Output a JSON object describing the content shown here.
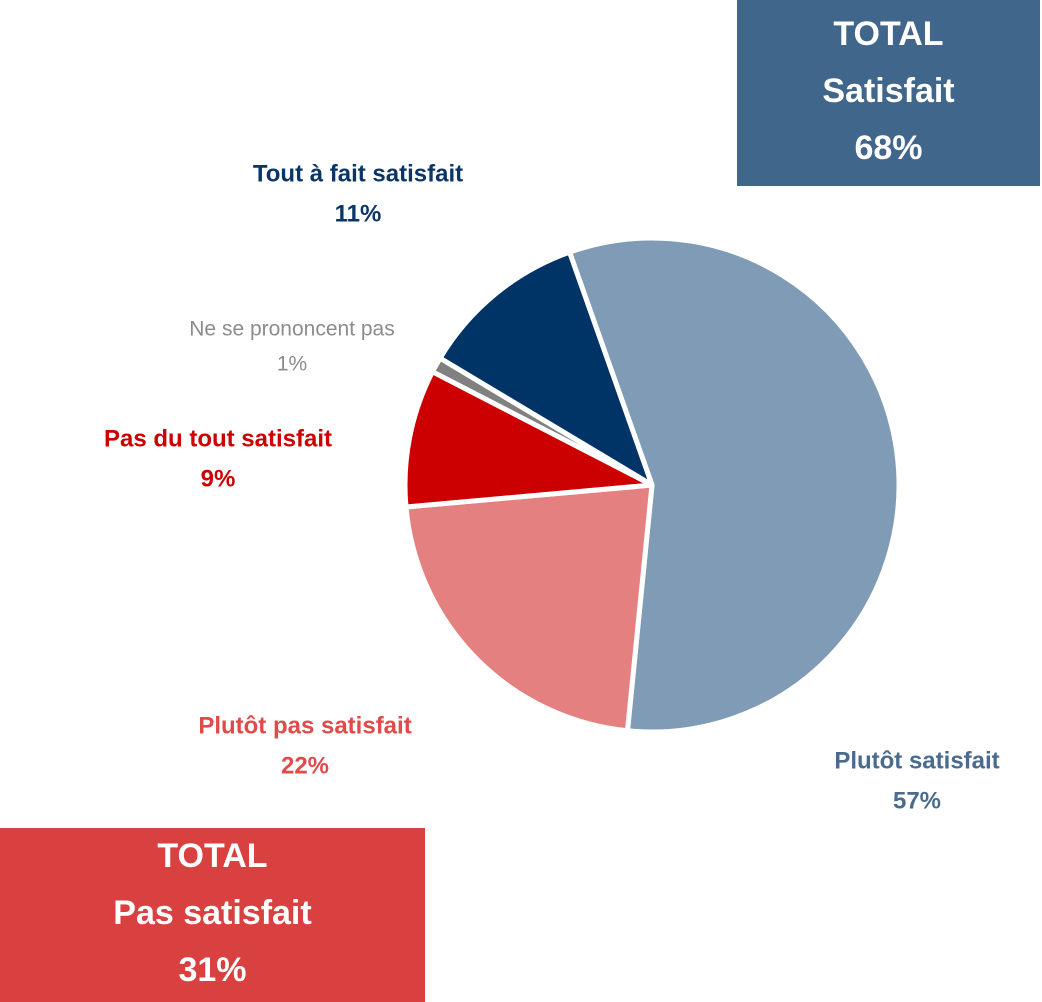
{
  "chart_data": {
    "type": "pie",
    "categories": [
      "Plutôt satisfait",
      "Plutôt pas satisfait",
      "Pas du tout satisfait",
      "Ne se prononcent pas",
      "Tout à fait satisfait"
    ],
    "values": [
      57,
      22,
      9,
      1,
      11
    ],
    "value_labels": [
      "57%",
      "22%",
      "9%",
      "1%",
      "11%"
    ],
    "colors": [
      "#7f9bb5",
      "#e58080",
      "#cc0000",
      "#808080",
      "#003366"
    ],
    "label_colors": [
      "#4a6a8e",
      "#e04a4a",
      "#cc0000",
      "#8c8c8c",
      "#0a3566"
    ],
    "annotations": [
      {
        "title": "TOTAL",
        "label": "Satisfait",
        "value_label": "68%",
        "color": "#41668c"
      },
      {
        "title": "TOTAL",
        "label": "Pas satisfait",
        "value_label": "31%",
        "color": "#d94040"
      }
    ]
  }
}
